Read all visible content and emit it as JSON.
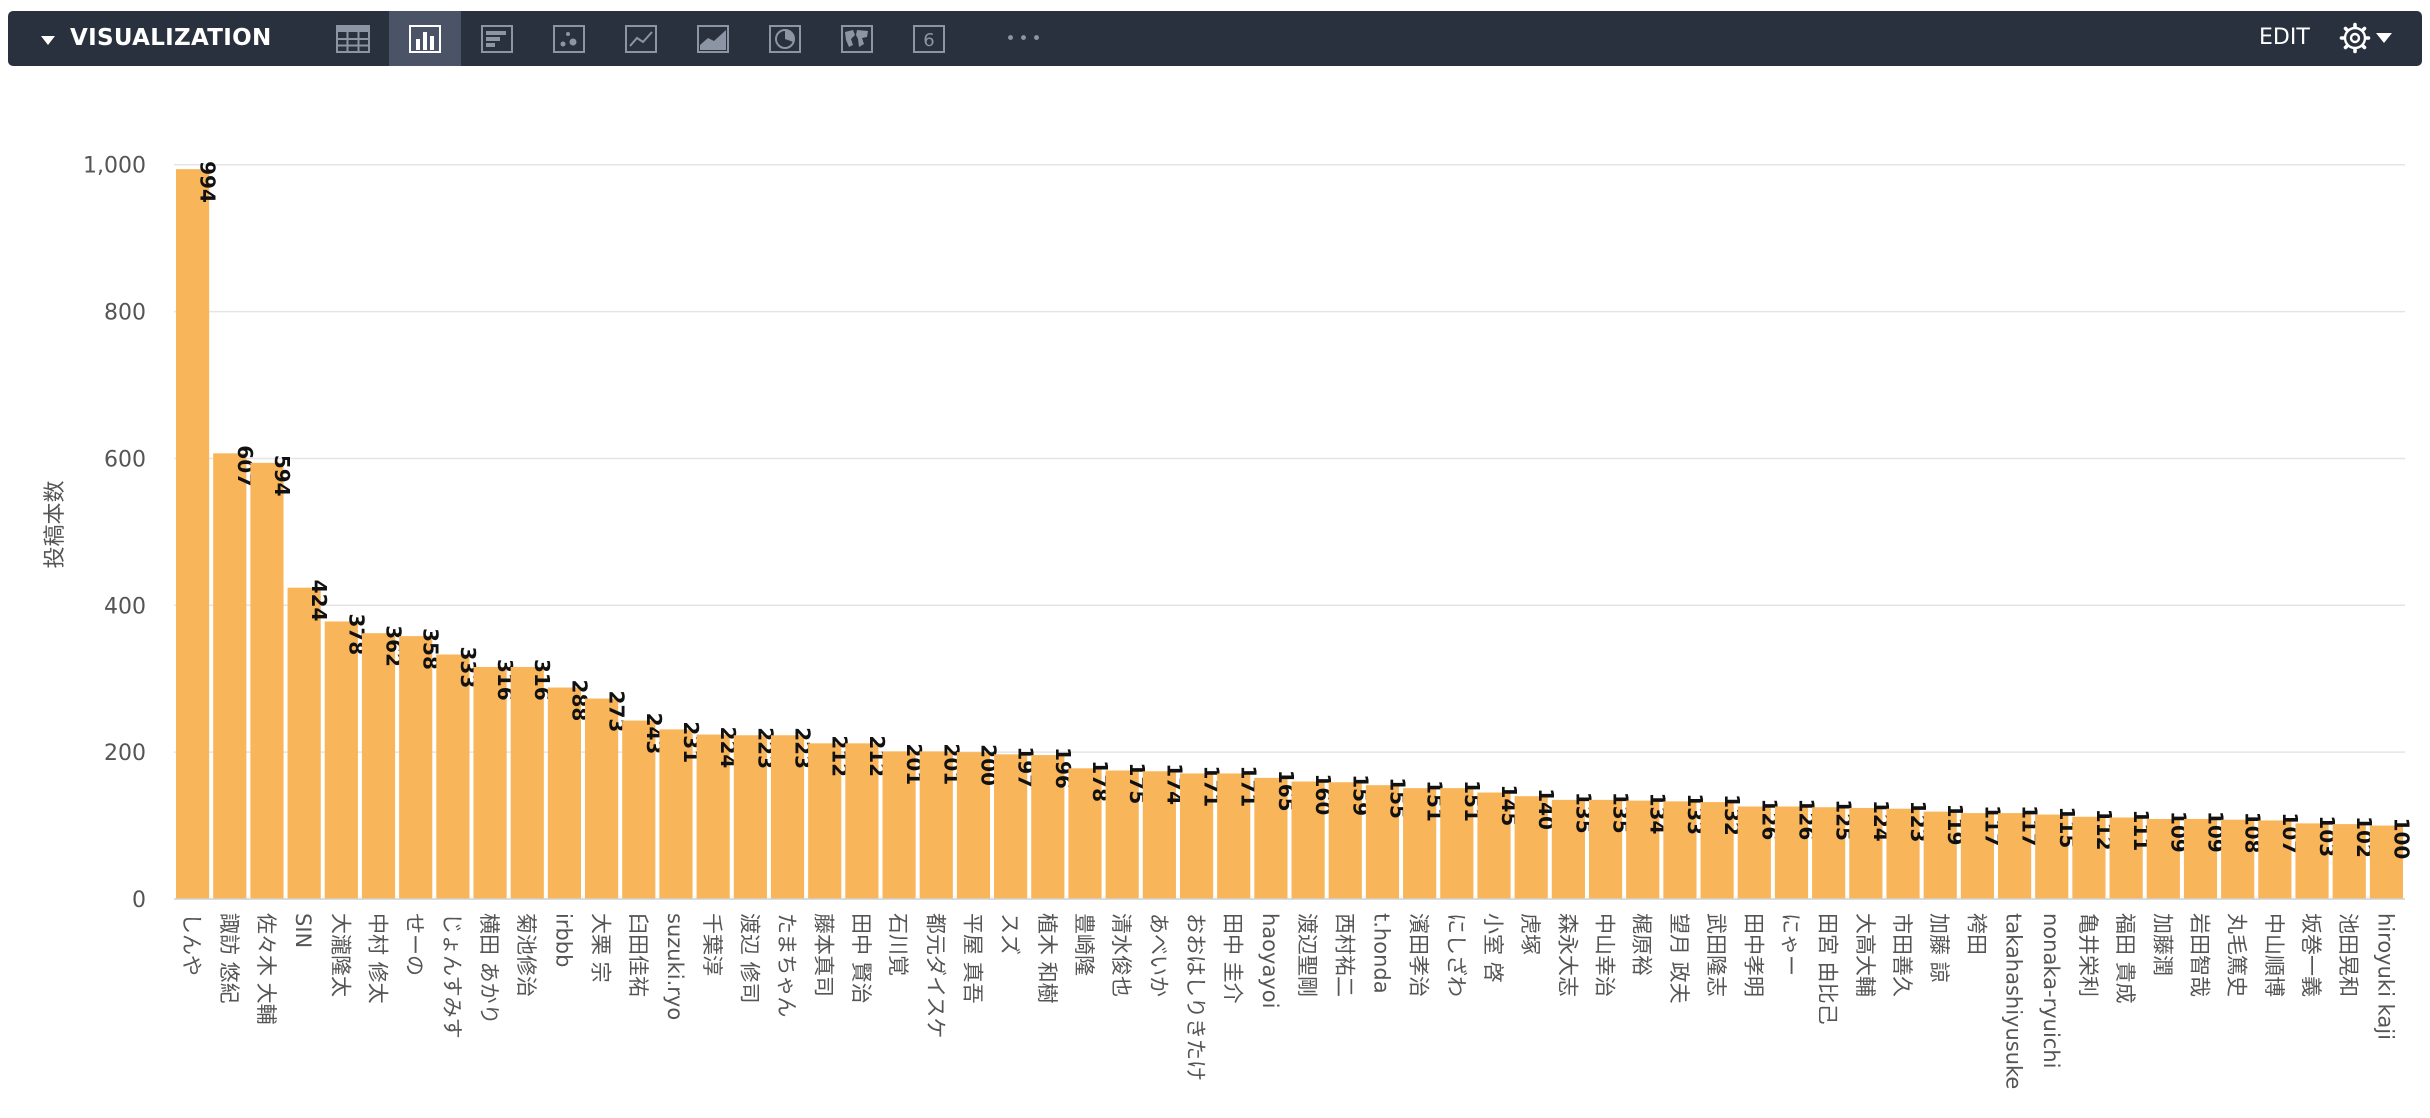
{
  "toolbar": {
    "title": "VISUALIZATION",
    "edit_label": "EDIT",
    "vis_types": [
      {
        "icon": "table-icon",
        "active": false
      },
      {
        "icon": "column-chart-icon",
        "active": true
      },
      {
        "icon": "bar-chart-icon",
        "active": false
      },
      {
        "icon": "scatter-chart-icon",
        "active": false
      },
      {
        "icon": "line-chart-icon",
        "active": false
      },
      {
        "icon": "area-chart-icon",
        "active": false
      },
      {
        "icon": "pie-chart-icon",
        "active": false
      },
      {
        "icon": "map-icon",
        "active": false
      },
      {
        "icon": "single-value-icon",
        "active": false
      },
      {
        "icon": "more-icon",
        "active": false
      }
    ],
    "single_value_glyph": "6",
    "more_glyph": "•••"
  },
  "colors": {
    "toolbar_bg": "#2a313e",
    "bar": "#f9b55a",
    "grid": "#e4e4e4",
    "text": "#555555",
    "label": "#111111"
  },
  "chart_data": {
    "type": "bar",
    "xlabel": "",
    "ylabel": "投稿本数",
    "ylim": [
      0,
      1080
    ],
    "yticks": [
      0,
      200,
      400,
      600,
      800,
      1000
    ],
    "ytick_labels": [
      "0",
      "200",
      "400",
      "600",
      "800",
      "1,000"
    ],
    "grid": true,
    "legend": "none",
    "data_labels": true,
    "categories": [
      "しんや",
      "諏訪 悠紀",
      "佐々木 大輔",
      "SIN",
      "大瀧隆太",
      "中村 修太",
      "せーの",
      "じょんすみす",
      "横田 あかり",
      "菊池修治",
      "irbbb",
      "大栗 宗",
      "臼田佳祐",
      "suzuki.ryo",
      "千葉淳",
      "渡辺 修司",
      "たまちゃん",
      "藤本真司",
      "田中 賢治",
      "石川覚",
      "都元ダイスケ",
      "平屋 真吾",
      "スズ",
      "植木 和樹",
      "豊崎隆",
      "清水俊也",
      "あべいか",
      "おおはしりきたけ",
      "田中 圭介",
      "haoyayoi",
      "渡辺聖剛",
      "西村祐二",
      "t.honda",
      "濱田孝治",
      "にしざわ",
      "小室 啓",
      "虎塚",
      "森永大志",
      "中山幸治",
      "梶原裕",
      "望月 政夫",
      "武田隆志",
      "田中孝明",
      "にゃー",
      "田宮 由比己",
      "大高大輔",
      "市田善久",
      "加藤 諒",
      "袴田",
      "takahashiyusuke",
      "nonaka-ryuichi",
      "亀井栄利",
      "福田 貴成",
      "加藤潤",
      "岩田智哉",
      "丸毛篤史",
      "中山順博",
      "坂巻一義",
      "池田晃和",
      "hiroyuki kaji"
    ],
    "values": [
      994,
      607,
      594,
      424,
      378,
      362,
      358,
      333,
      316,
      316,
      288,
      273,
      243,
      231,
      224,
      223,
      223,
      212,
      212,
      201,
      201,
      200,
      197,
      196,
      178,
      175,
      174,
      171,
      171,
      165,
      160,
      159,
      155,
      151,
      151,
      145,
      140,
      135,
      135,
      134,
      133,
      132,
      126,
      126,
      125,
      124,
      123,
      119,
      117,
      117,
      115,
      112,
      111,
      109,
      109,
      108,
      107,
      103,
      102,
      100
    ]
  }
}
